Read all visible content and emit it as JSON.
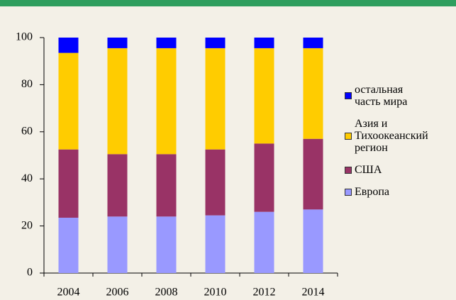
{
  "chart_data": {
    "type": "stacked_bar",
    "categories": [
      "2004",
      "2006",
      "2008",
      "2010",
      "2012",
      "2014"
    ],
    "series": [
      {
        "name": "Европа",
        "color": "#9999ff",
        "values": [
          23.5,
          24,
          24,
          24.5,
          26,
          27
        ]
      },
      {
        "name": "США",
        "color": "#993366",
        "values": [
          29,
          26.5,
          26.5,
          28,
          29,
          30
        ]
      },
      {
        "name": "Азия и Тихоокеанский регион",
        "color": "#ffcc00",
        "values": [
          41,
          45,
          45,
          43,
          40.5,
          38.5
        ]
      },
      {
        "name": "остальная часть мира",
        "color": "#0000ff",
        "values": [
          6.5,
          4.5,
          4.5,
          4.5,
          4.5,
          4.5
        ]
      }
    ],
    "ylim": [
      0,
      100
    ],
    "yticks": [
      0,
      20,
      40,
      60,
      80,
      100
    ],
    "legend": "right"
  }
}
